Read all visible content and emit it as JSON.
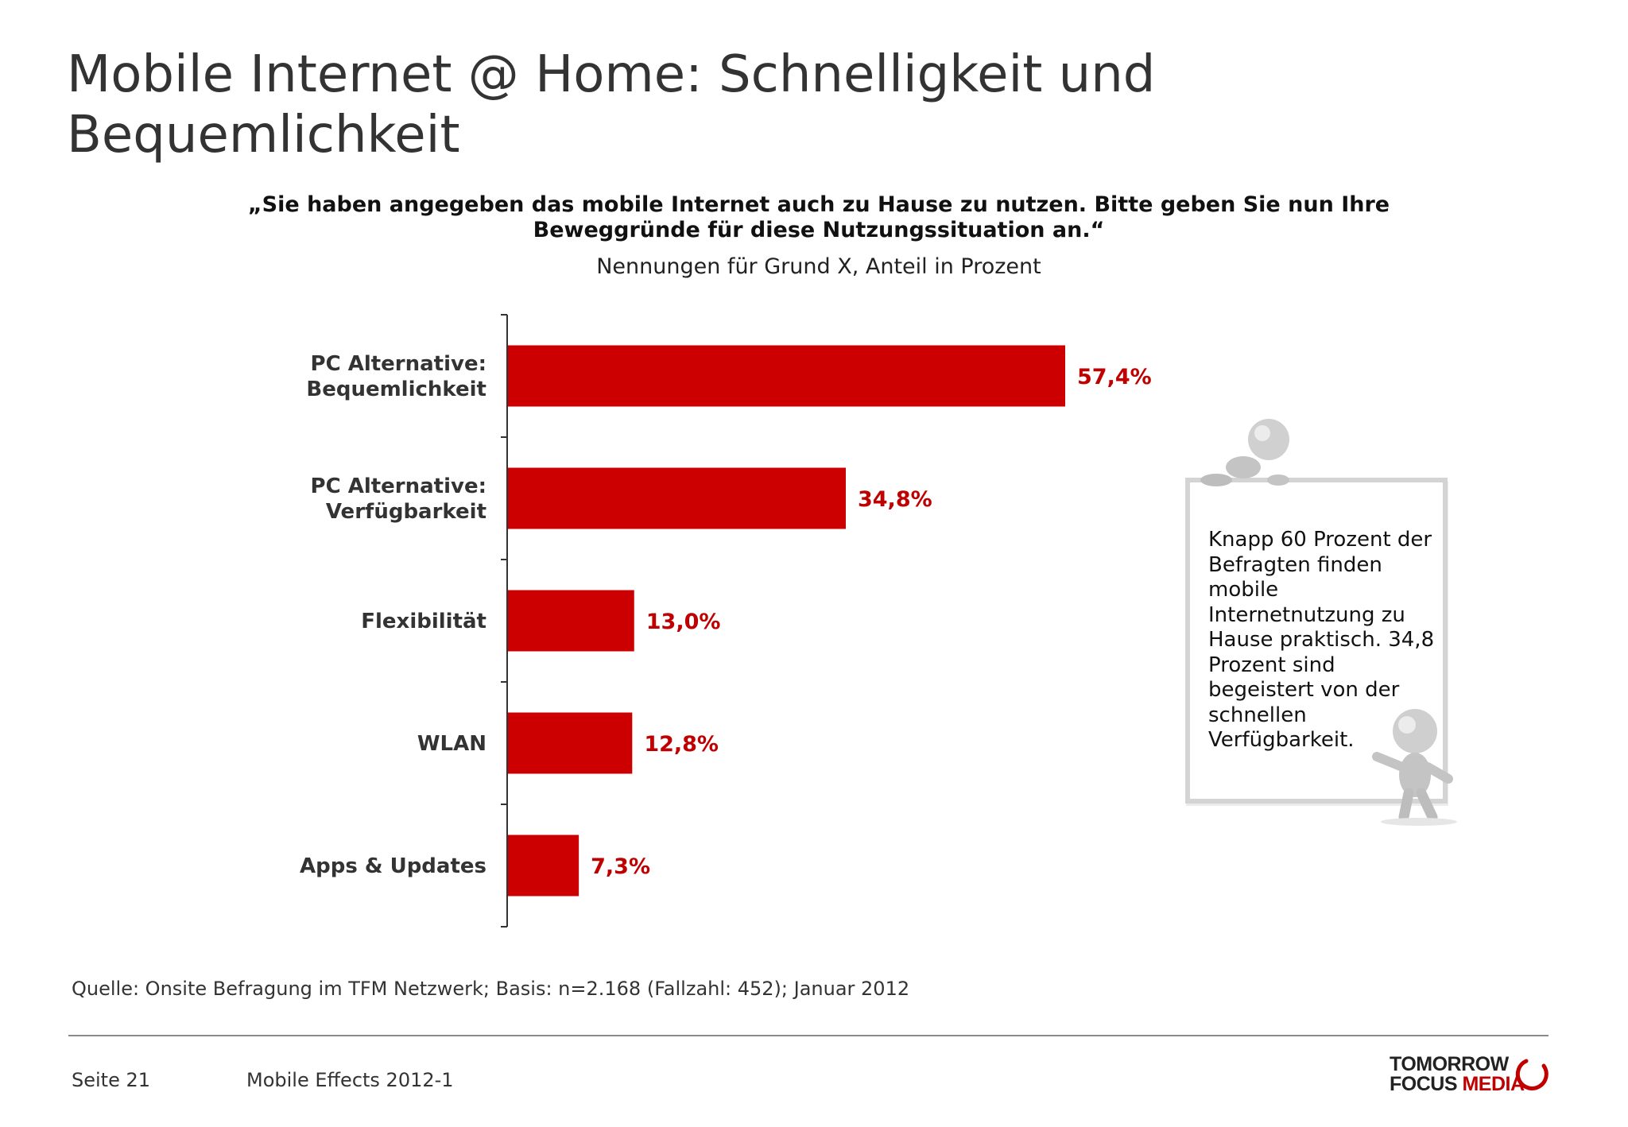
{
  "title": "Mobile Internet @ Home: Schnelligkeit und Bequemlichkeit",
  "question": {
    "line1": "„Sie haben angegeben das mobile Internet auch zu Hause zu nutzen. Bitte geben Sie nun Ihre",
    "line2": "Beweggründe für diese Nutzungssituation an.“"
  },
  "subtitle": "Nennungen für Grund X, Anteil in Prozent",
  "colors": {
    "bar": "#cc0000",
    "value_label": "#c00000",
    "text": "#333333"
  },
  "chart_data": {
    "type": "bar",
    "orientation": "horizontal",
    "categories": [
      [
        "PC Alternative:",
        "Bequemlichkeit"
      ],
      [
        "PC Alternative:",
        "Verfügbarkeit"
      ],
      [
        "Flexibilität"
      ],
      [
        "WLAN"
      ],
      [
        "Apps & Updates"
      ]
    ],
    "values": [
      57.4,
      34.8,
      13.0,
      12.8,
      7.3
    ],
    "value_labels": [
      "57,4%",
      "34,8%",
      "13,0%",
      "12,8%",
      "7,3%"
    ],
    "xlim": [
      0,
      100
    ],
    "grid": false,
    "legend": "none"
  },
  "callout": {
    "lines": [
      "Knapp 60 Prozent der",
      "Befragten finden",
      "mobile",
      "Internetnutzung zu",
      "Hause praktisch. 34,8",
      "Prozent sind",
      "begeistert von der",
      "schnellen",
      "Verfügbarkeit."
    ]
  },
  "source": "Quelle: Onsite Befragung im TFM Netzwerk; Basis: n=2.168 (Fallzahl: 452); Januar 2012",
  "footer": {
    "page": "Seite 21",
    "doc": "Mobile Effects 2012-1"
  },
  "logo": {
    "line1": "TOMORROW",
    "line2a": "FOCUS",
    "line2b": "MEDIA"
  }
}
